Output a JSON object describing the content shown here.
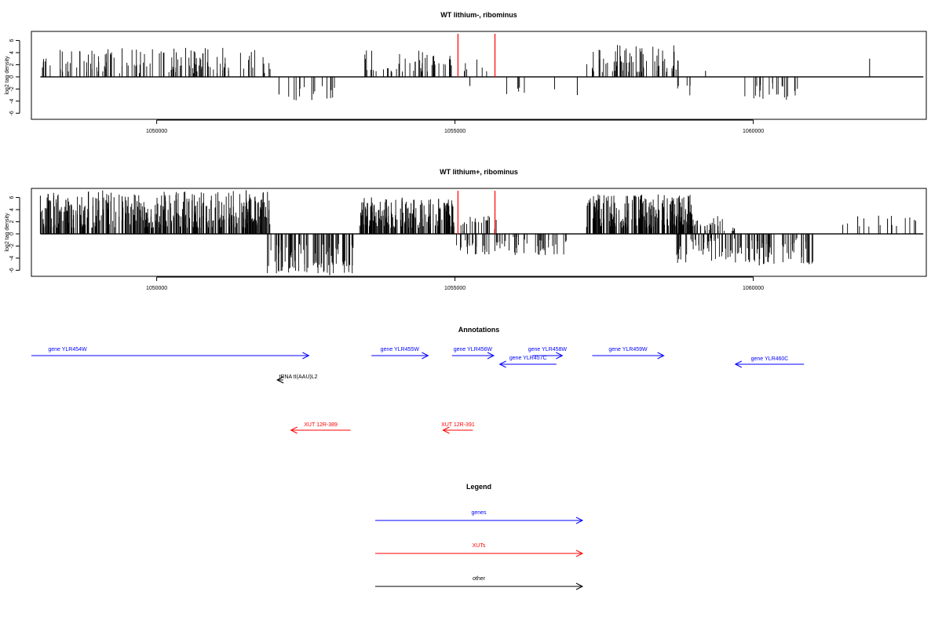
{
  "chart_data": [
    {
      "type": "bar",
      "title": "WT lithium-, ribominus",
      "ylabel": "log2 tag density",
      "xlim": [
        1047900,
        1062900
      ],
      "ylim": [
        -7,
        7.5
      ],
      "yticks": [
        6,
        4,
        2,
        0,
        -2,
        -4,
        -6
      ],
      "xticks": [
        1050000,
        1055000,
        1060000
      ],
      "xtick_labels": [
        "1050000",
        "1055000",
        "1060000"
      ],
      "markers": [
        1055050,
        1055670
      ],
      "marker_color": "#ff0000",
      "regions": [
        {
          "start": 1048050,
          "end": 1051900,
          "count": 125,
          "min": 0.6,
          "max": 4.8,
          "strand": "+"
        },
        {
          "start": 1052150,
          "end": 1053150,
          "count": 14,
          "min": -3.9,
          "max": -1.2,
          "strand": "-"
        },
        {
          "start": 1053450,
          "end": 1054950,
          "count": 45,
          "min": 0.8,
          "max": 4.4,
          "strand": "+"
        },
        {
          "start": 1055150,
          "end": 1055600,
          "count": 6,
          "min": 0.8,
          "max": 3.1,
          "strand": "+"
        },
        {
          "start": 1055850,
          "end": 1056850,
          "count": 6,
          "min": -3.2,
          "max": -1.2,
          "strand": "-"
        },
        {
          "start": 1057200,
          "end": 1058800,
          "count": 70,
          "min": 0.8,
          "max": 5.4,
          "strand": "+"
        },
        {
          "start": 1058700,
          "end": 1059000,
          "count": 5,
          "min": -3.2,
          "max": -1.0,
          "strand": "-"
        },
        {
          "start": 1059850,
          "end": 1060800,
          "count": 22,
          "min": -3.8,
          "max": -1.0,
          "strand": "-"
        }
      ],
      "points": [
        {
          "x": 1048100,
          "y": 2.5
        },
        {
          "x": 1051900,
          "y": 1.3
        },
        {
          "x": 1052050,
          "y": -2.9
        },
        {
          "x": 1052600,
          "y": -3.8
        },
        {
          "x": 1055250,
          "y": -1.5
        },
        {
          "x": 1057050,
          "y": -3.0
        },
        {
          "x": 1059200,
          "y": 1.0
        },
        {
          "x": 1061950,
          "y": 3.0
        }
      ]
    },
    {
      "type": "bar",
      "title": "WT lithium+, ribominus",
      "ylabel": "log2 tag density",
      "xlim": [
        1047900,
        1062900
      ],
      "ylim": [
        -7,
        7.5
      ],
      "yticks": [
        6,
        4,
        2,
        0,
        -2,
        -4,
        -6
      ],
      "xticks": [
        1050000,
        1055000,
        1060000
      ],
      "xtick_labels": [
        "1050000",
        "1055000",
        "1060000"
      ],
      "markers": [
        1055050,
        1055670
      ],
      "marker_color": "#ff0000",
      "regions": [
        {
          "start": 1048050,
          "end": 1051900,
          "count": 420,
          "min": 1.0,
          "max": 7.2,
          "strand": "+"
        },
        {
          "start": 1051850,
          "end": 1053300,
          "count": 90,
          "min": -6.5,
          "max": -1.0,
          "strand": "-"
        },
        {
          "start": 1053400,
          "end": 1055000,
          "count": 180,
          "min": 1.0,
          "max": 6.0,
          "strand": "+"
        },
        {
          "start": 1055000,
          "end": 1056900,
          "count": 60,
          "min": -3.5,
          "max": -0.5,
          "strand": "-"
        },
        {
          "start": 1055100,
          "end": 1055700,
          "count": 20,
          "min": 0.5,
          "max": 3.0,
          "strand": "+"
        },
        {
          "start": 1057200,
          "end": 1059000,
          "count": 230,
          "min": 1.0,
          "max": 6.5,
          "strand": "+"
        },
        {
          "start": 1058700,
          "end": 1061000,
          "count": 120,
          "min": -5.0,
          "max": -0.5,
          "strand": "-"
        },
        {
          "start": 1059000,
          "end": 1059700,
          "count": 30,
          "min": 0.5,
          "max": 3.0,
          "strand": "+"
        },
        {
          "start": 1061450,
          "end": 1062800,
          "count": 10,
          "min": 0.5,
          "max": 3.0,
          "strand": "+"
        }
      ],
      "points": [
        {
          "x": 1048050,
          "y": 6.3
        },
        {
          "x": 1049420,
          "y": 6.2
        },
        {
          "x": 1051500,
          "y": 7.2
        },
        {
          "x": 1052900,
          "y": -6.8
        },
        {
          "x": 1053600,
          "y": 6.0
        },
        {
          "x": 1058000,
          "y": 6.3
        },
        {
          "x": 1057400,
          "y": 6.5
        },
        {
          "x": 1060100,
          "y": -5.2
        },
        {
          "x": 1060900,
          "y": -4.6
        },
        {
          "x": 1061500,
          "y": 1.5
        },
        {
          "x": 1061750,
          "y": 2.9
        },
        {
          "x": 1062100,
          "y": 3.0
        },
        {
          "x": 1062250,
          "y": 2.5
        },
        {
          "x": 1062400,
          "y": 1.3
        },
        {
          "x": 1062700,
          "y": 2.3
        }
      ]
    }
  ],
  "annotations": {
    "title": "Annotations",
    "features": [
      {
        "label": "gene YLR454W",
        "color": "#0000ff",
        "start": 1047900,
        "end": 1052550,
        "strand": "+",
        "row": 0
      },
      {
        "label": "gene YLR455W",
        "color": "#0000ff",
        "start": 1053600,
        "end": 1054550,
        "strand": "+",
        "row": 0
      },
      {
        "label": "gene YLR456W",
        "color": "#0000ff",
        "start": 1054950,
        "end": 1055650,
        "strand": "+",
        "row": 0
      },
      {
        "label": "gene YLR457C",
        "color": "#0000ff",
        "start": 1055750,
        "end": 1056700,
        "strand": "-",
        "row": 1
      },
      {
        "label": "gene YLR458W",
        "color": "#0000ff",
        "start": 1056300,
        "end": 1056800,
        "strand": "+",
        "row": 0
      },
      {
        "label": "gene YLR459W",
        "color": "#0000ff",
        "start": 1057300,
        "end": 1058500,
        "strand": "+",
        "row": 0
      },
      {
        "label": "gene YLR460C",
        "color": "#0000ff",
        "start": 1059700,
        "end": 1060850,
        "strand": "-",
        "row": 2
      },
      {
        "label": "tRNA tI(AAU)L2",
        "color": "#000000",
        "start": 1052020,
        "end": 1052120,
        "strand": "-",
        "row": 3
      },
      {
        "label": "XUT 12R-389",
        "color": "#ff0000",
        "start": 1052250,
        "end": 1053250,
        "strand": "-",
        "row": 4
      },
      {
        "label": "XUT 12R-391",
        "color": "#ff0000",
        "start": 1054800,
        "end": 1055300,
        "strand": "-",
        "row": 4
      }
    ]
  },
  "legend": {
    "title": "Legend",
    "items": [
      {
        "label": "genes",
        "color": "#0000ff"
      },
      {
        "label": "XUTs",
        "color": "#ff0000"
      },
      {
        "label": "other",
        "color": "#000000"
      }
    ]
  }
}
